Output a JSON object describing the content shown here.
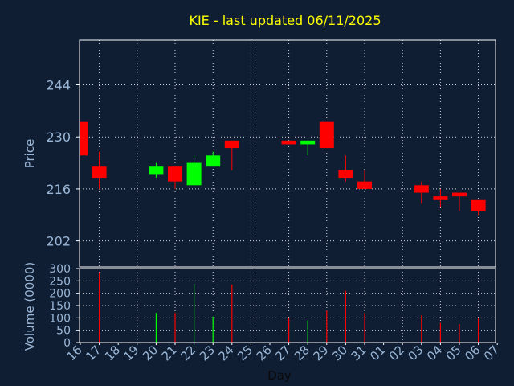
{
  "chart_data": {
    "title": "KIE - last updated 06/11/2025",
    "colors": {
      "background": "#0f1e33",
      "title": "#ffff00",
      "axis_text": "#9ab6d6",
      "axis_line": "#ffffff",
      "grid": "#ffffff",
      "up": "#00ff00",
      "down": "#ff0000",
      "frame": "#ffffff"
    },
    "price_panel": {
      "type": "candlestick",
      "ylabel": "Price",
      "ylim": [
        195,
        256
      ],
      "yticks": [
        202,
        216,
        230,
        244
      ],
      "grid": true
    },
    "volume_panel": {
      "type": "bar",
      "ylabel": "Volume (0000)",
      "ylim": [
        0,
        300
      ],
      "yticks": [
        0,
        50,
        100,
        150,
        200,
        250,
        300
      ],
      "grid": true
    },
    "xlabel": "Day",
    "x_ticks": [
      "16",
      "17",
      "18",
      "19",
      "20",
      "21",
      "22",
      "23",
      "24",
      "25",
      "26",
      "27",
      "28",
      "29",
      "30",
      "31",
      "01",
      "02",
      "03",
      "04",
      "05",
      "06",
      "07"
    ],
    "candles": [
      {
        "day": "16",
        "open": 234,
        "high": 234,
        "low": 225,
        "close": 225
      },
      {
        "day": "17",
        "open": 222,
        "high": 226,
        "low": 216,
        "close": 219
      },
      {
        "day": "20",
        "open": 220,
        "high": 223,
        "low": 219,
        "close": 222
      },
      {
        "day": "21",
        "open": 222,
        "high": 222,
        "low": 216,
        "close": 218
      },
      {
        "day": "22",
        "open": 217,
        "high": 225,
        "low": 217,
        "close": 223
      },
      {
        "day": "23",
        "open": 222,
        "high": 226,
        "low": 222,
        "close": 225
      },
      {
        "day": "24",
        "open": 229,
        "high": 229,
        "low": 221,
        "close": 227
      },
      {
        "day": "27",
        "open": 229,
        "high": 229,
        "low": 228,
        "close": 228
      },
      {
        "day": "28",
        "open": 228,
        "high": 229,
        "low": 225,
        "close": 229
      },
      {
        "day": "29",
        "open": 234,
        "high": 234,
        "low": 227,
        "close": 227
      },
      {
        "day": "30",
        "open": 221,
        "high": 225,
        "low": 218,
        "close": 219
      },
      {
        "day": "31",
        "open": 218,
        "high": 221,
        "low": 216,
        "close": 216
      },
      {
        "day": "03",
        "open": 217,
        "high": 218,
        "low": 212,
        "close": 215
      },
      {
        "day": "04",
        "open": 214,
        "high": 216,
        "low": 211,
        "close": 213
      },
      {
        "day": "05",
        "open": 215,
        "high": 215,
        "low": 210,
        "close": 214
      },
      {
        "day": "06",
        "open": 213,
        "high": 213,
        "low": 209,
        "close": 210
      }
    ],
    "volumes": [
      {
        "day": "17",
        "value": 285,
        "dir": "down"
      },
      {
        "day": "20",
        "value": 120,
        "dir": "up"
      },
      {
        "day": "21",
        "value": 120,
        "dir": "down"
      },
      {
        "day": "22",
        "value": 240,
        "dir": "up"
      },
      {
        "day": "23",
        "value": 105,
        "dir": "up"
      },
      {
        "day": "24",
        "value": 235,
        "dir": "down"
      },
      {
        "day": "27",
        "value": 100,
        "dir": "down"
      },
      {
        "day": "28",
        "value": 90,
        "dir": "up"
      },
      {
        "day": "29",
        "value": 130,
        "dir": "down"
      },
      {
        "day": "30",
        "value": 210,
        "dir": "down"
      },
      {
        "day": "31",
        "value": 120,
        "dir": "down"
      },
      {
        "day": "03",
        "value": 110,
        "dir": "down"
      },
      {
        "day": "04",
        "value": 80,
        "dir": "down"
      },
      {
        "day": "05",
        "value": 75,
        "dir": "down"
      },
      {
        "day": "06",
        "value": 100,
        "dir": "down"
      }
    ]
  }
}
